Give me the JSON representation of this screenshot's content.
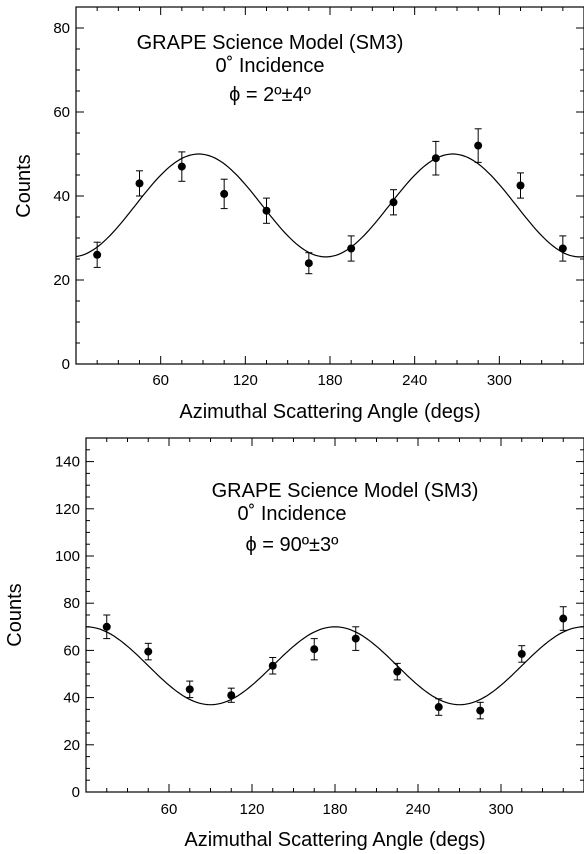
{
  "chart_data": [
    {
      "type": "scatter",
      "title_lines": [
        "GRAPE Science Model (SM3)",
        "0˚ Incidence",
        "ϕ = 2º±4º"
      ],
      "xlabel": "Azimuthal Scattering Angle (degs)",
      "ylabel": "Counts",
      "xlim": [
        0,
        360
      ],
      "ylim": [
        0,
        85
      ],
      "xticks": [
        60,
        120,
        180,
        240,
        300
      ],
      "yticks": [
        0,
        20,
        40,
        60,
        80
      ],
      "grid": false,
      "points": [
        {
          "x": 15,
          "y": 26,
          "err": 3
        },
        {
          "x": 45,
          "y": 43,
          "err": 3
        },
        {
          "x": 75,
          "y": 47,
          "err": 3.5
        },
        {
          "x": 105,
          "y": 40.5,
          "err": 3.5
        },
        {
          "x": 135,
          "y": 36.5,
          "err": 3
        },
        {
          "x": 165,
          "y": 24,
          "err": 2.5
        },
        {
          "x": 195,
          "y": 27.5,
          "err": 3
        },
        {
          "x": 225,
          "y": 38.5,
          "err": 3
        },
        {
          "x": 255,
          "y": 49,
          "err": 4
        },
        {
          "x": 285,
          "y": 52,
          "err": 4
        },
        {
          "x": 315,
          "y": 42.5,
          "err": 3
        },
        {
          "x": 345,
          "y": 27.5,
          "err": 3
        }
      ],
      "fit": {
        "mean": 37.75,
        "amplitude": 12.25,
        "phase_deg": 87
      }
    },
    {
      "type": "scatter",
      "title_lines": [
        "GRAPE Science Model (SM3)",
        "0˚ Incidence",
        "ϕ = 90º±3º"
      ],
      "xlabel": "Azimuthal Scattering Angle (degs)",
      "ylabel": "Counts",
      "xlim": [
        0,
        360
      ],
      "ylim": [
        0,
        150
      ],
      "xticks": [
        60,
        120,
        180,
        240,
        300
      ],
      "yticks": [
        0,
        20,
        40,
        60,
        80,
        100,
        120,
        140
      ],
      "grid": false,
      "points": [
        {
          "x": 15,
          "y": 70,
          "err": 5
        },
        {
          "x": 45,
          "y": 59.5,
          "err": 3.5
        },
        {
          "x": 75,
          "y": 43.5,
          "err": 3.5
        },
        {
          "x": 105,
          "y": 41,
          "err": 3
        },
        {
          "x": 135,
          "y": 53.5,
          "err": 3.5
        },
        {
          "x": 165,
          "y": 60.5,
          "err": 4.5
        },
        {
          "x": 195,
          "y": 65,
          "err": 5
        },
        {
          "x": 225,
          "y": 51,
          "err": 3.5
        },
        {
          "x": 255,
          "y": 36,
          "err": 3.5
        },
        {
          "x": 285,
          "y": 34.5,
          "err": 3.5
        },
        {
          "x": 315,
          "y": 58.5,
          "err": 3.5
        },
        {
          "x": 345,
          "y": 73.5,
          "err": 5
        }
      ],
      "fit": {
        "mean": 53.5,
        "amplitude": 16.5,
        "phase_deg": 0
      }
    }
  ]
}
